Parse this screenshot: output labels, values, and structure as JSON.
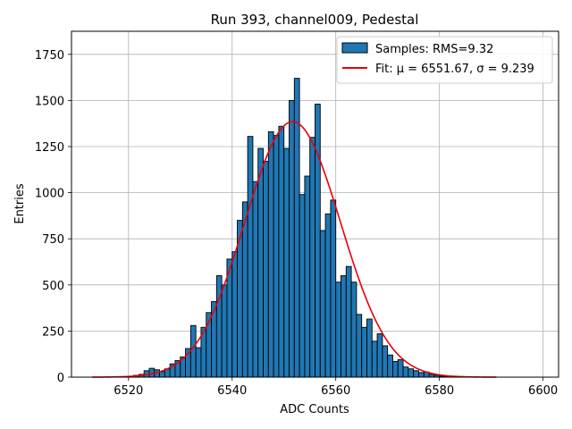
{
  "chart_data": {
    "type": "bar",
    "title": "Run 393, channel009, Pedestal",
    "xlabel": "ADC Counts",
    "ylabel": "Entries",
    "xlim": [
      6509,
      6603
    ],
    "ylim": [
      0,
      1875
    ],
    "xticks": [
      6520,
      6540,
      6560,
      6580,
      6600
    ],
    "yticks": [
      0,
      250,
      500,
      750,
      1000,
      1250,
      1500,
      1750
    ],
    "grid": true,
    "legend_position": "top-right",
    "bin_width": 1,
    "bins_start": 6519,
    "counts": [
      2,
      5,
      10,
      15,
      35,
      48,
      40,
      30,
      45,
      72,
      90,
      110,
      155,
      280,
      160,
      270,
      350,
      410,
      550,
      500,
      640,
      680,
      850,
      950,
      1305,
      1060,
      1240,
      1170,
      1330,
      1310,
      1360,
      1240,
      1500,
      1620,
      990,
      1090,
      1300,
      1480,
      795,
      885,
      960,
      515,
      550,
      600,
      515,
      340,
      270,
      315,
      195,
      235,
      170,
      120,
      85,
      95,
      55,
      45,
      35,
      25,
      28,
      15,
      10,
      5,
      3
    ],
    "series": [
      {
        "name": "Samples: RMS=9.32",
        "kind": "histogram",
        "color": "#1f77b4",
        "edge_color": "#000000"
      },
      {
        "name": "Fit: μ = 6551.67, σ = 9.239",
        "kind": "gaussian-fit",
        "color": "#e8000b",
        "mu": 6551.67,
        "sigma": 9.239,
        "amplitude": 1385,
        "x_range": [
          6513,
          6591
        ]
      }
    ]
  }
}
